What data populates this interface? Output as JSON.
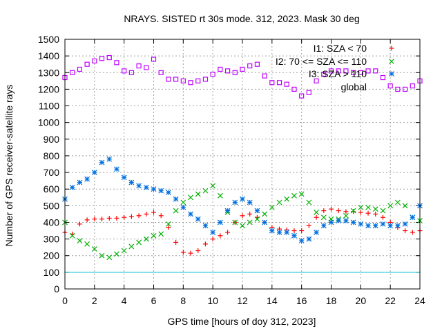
{
  "chart_data": {
    "type": "scatter",
    "title": "NRAYS. SISTED rt 30s mode. 312, 2023. Mask 30 deg",
    "xlabel": "GPS time [hours of doy 312, 2023]",
    "ylabel": "Number of GPS receiver-satellite rays",
    "xlim": [
      0,
      24
    ],
    "ylim": [
      0,
      1500
    ],
    "xticks": [
      0,
      2,
      4,
      6,
      8,
      10,
      12,
      14,
      16,
      18,
      20,
      22,
      24
    ],
    "yticks": [
      0,
      100,
      200,
      300,
      400,
      500,
      600,
      700,
      800,
      900,
      1000,
      1100,
      1200,
      1300,
      1400,
      1500
    ],
    "grid": true,
    "legend_position": "top-right",
    "reference_line": {
      "y": 100,
      "color": "#00c0e0"
    },
    "series": [
      {
        "name": "I1: SZA < 70",
        "marker": "+",
        "color": "#ff0000",
        "x": [
          0,
          0.5,
          1,
          1.5,
          2,
          2.5,
          3,
          3.5,
          4,
          4.5,
          5,
          5.5,
          6,
          6.5,
          7,
          7.5,
          8,
          8.5,
          9,
          9.5,
          10,
          10.5,
          11,
          11.5,
          12,
          12.5,
          13,
          13.5,
          14,
          14.5,
          15,
          15.5,
          16,
          16.5,
          17,
          17.5,
          18,
          18.5,
          19,
          19.5,
          20,
          20.5,
          21,
          21.5,
          22,
          22.5,
          23,
          23.5,
          24
        ],
        "y": [
          340,
          330,
          390,
          415,
          420,
          420,
          425,
          425,
          430,
          435,
          440,
          450,
          460,
          440,
          370,
          280,
          220,
          215,
          230,
          270,
          300,
          320,
          340,
          400,
          440,
          450,
          430,
          400,
          370,
          360,
          355,
          350,
          350,
          380,
          430,
          470,
          480,
          470,
          465,
          465,
          460,
          455,
          450,
          430,
          400,
          370,
          350,
          340,
          350
        ]
      },
      {
        "name": "I2: 70 <= SZA <= 110",
        "marker": "x",
        "color": "#00b000",
        "x": [
          0,
          0.5,
          1,
          1.5,
          2,
          2.5,
          3,
          3.5,
          4,
          4.5,
          5,
          5.5,
          6,
          6.5,
          7,
          7.5,
          8,
          8.5,
          9,
          9.5,
          10,
          10.5,
          11,
          11.5,
          12,
          12.5,
          13,
          13.5,
          14,
          14.5,
          15,
          15.5,
          16,
          16.5,
          17,
          17.5,
          18,
          18.5,
          19,
          19.5,
          20,
          20.5,
          21,
          21.5,
          22,
          22.5,
          23,
          23.5,
          24
        ],
        "y": [
          400,
          320,
          290,
          270,
          240,
          200,
          190,
          210,
          230,
          255,
          280,
          300,
          320,
          330,
          390,
          470,
          520,
          550,
          570,
          590,
          620,
          560,
          460,
          400,
          380,
          400,
          420,
          450,
          490,
          520,
          540,
          560,
          570,
          520,
          460,
          430,
          420,
          420,
          440,
          470,
          490,
          490,
          480,
          470,
          500,
          520,
          500,
          430,
          410
        ]
      },
      {
        "name": "I3: SZA > 110",
        "marker": "*",
        "color": "#0070e0",
        "x": [
          0,
          0.5,
          1,
          1.5,
          2,
          2.5,
          3,
          3.5,
          4,
          4.5,
          5,
          5.5,
          6,
          6.5,
          7,
          7.5,
          8,
          8.5,
          9,
          9.5,
          10,
          10.5,
          11,
          11.5,
          12,
          12.5,
          13,
          13.5,
          14,
          14.5,
          15,
          15.5,
          16,
          16.5,
          17,
          17.5,
          18,
          18.5,
          19,
          19.5,
          20,
          20.5,
          21,
          21.5,
          22,
          22.5,
          23,
          23.5,
          24
        ],
        "y": [
          540,
          610,
          640,
          660,
          700,
          760,
          780,
          720,
          670,
          640,
          620,
          610,
          600,
          590,
          580,
          540,
          490,
          450,
          420,
          380,
          340,
          400,
          470,
          520,
          540,
          520,
          470,
          400,
          350,
          340,
          340,
          320,
          290,
          300,
          340,
          380,
          400,
          410,
          410,
          400,
          390,
          380,
          380,
          390,
          380,
          380,
          390,
          430,
          500
        ]
      },
      {
        "name": "global",
        "marker": "square",
        "color": "#c000ff",
        "x": [
          0,
          0.5,
          1,
          1.5,
          2,
          2.5,
          3,
          3.5,
          4,
          4.5,
          5,
          5.5,
          6,
          6.5,
          7,
          7.5,
          8,
          8.5,
          9,
          9.5,
          10,
          10.5,
          11,
          11.5,
          12,
          12.5,
          13,
          13.5,
          14,
          14.5,
          15,
          15.5,
          16,
          16.5,
          17,
          17.5,
          18,
          18.5,
          19,
          19.5,
          20,
          20.5,
          21,
          21.5,
          22,
          22.5,
          23,
          23.5,
          24
        ],
        "y": [
          1270,
          1300,
          1320,
          1350,
          1370,
          1385,
          1390,
          1360,
          1310,
          1300,
          1340,
          1330,
          1380,
          1300,
          1260,
          1260,
          1250,
          1240,
          1250,
          1260,
          1290,
          1320,
          1310,
          1300,
          1320,
          1340,
          1350,
          1280,
          1240,
          1240,
          1230,
          1200,
          1160,
          1180,
          1250,
          1290,
          1310,
          1310,
          1310,
          1300,
          1300,
          1310,
          1310,
          1270,
          1220,
          1200,
          1200,
          1220,
          1250
        ]
      }
    ]
  }
}
